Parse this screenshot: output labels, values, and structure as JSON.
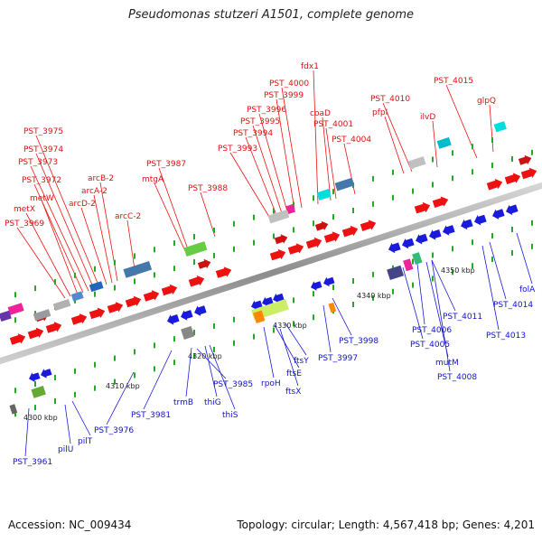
{
  "title": "Pseudomonas stutzeri A1501, complete genome",
  "footer": {
    "accession": "Accession: NC_009434",
    "summary": "Topology: circular; Length: 4,567,418 bp; Genes: 4,201"
  },
  "colors": {
    "forward": "#ee1111",
    "reverse": "#1a1adc",
    "backbone": "#9a9a9a",
    "tick": "#22aa22"
  },
  "kbp_labels": [
    "4300 kbp",
    "4310 kbp",
    "4320 kbp",
    "4330 kbp",
    "4340 kbp",
    "4350 kbp"
  ],
  "forward_labels": [
    "PST_3969",
    "metX",
    "metW",
    "PST_3972",
    "PST_3973",
    "PST_3974",
    "PST_3975",
    "arcD-2",
    "arcA-2",
    "arcB-2",
    "arcC-2",
    "mtgA",
    "PST_3987",
    "PST_3988",
    "PST_3993",
    "PST_3994",
    "PST_3995",
    "PST_3996",
    "PST_3999",
    "PST_4000",
    "fdx1",
    "coaD",
    "PST_4001",
    "PST_4004",
    "pfpI",
    "PST_4010",
    "ilvD",
    "PST_4015",
    "glpQ"
  ],
  "reverse_labels": [
    "PST_3961",
    "pilU",
    "pilT",
    "PST_3976",
    "PST_3981",
    "trmB",
    "thiG",
    "thiS",
    "PST_3985",
    "rpoH",
    "ftsX",
    "ftsE",
    "ftsY",
    "PST_3997",
    "PST_3998",
    "PST_4005",
    "PST_4006",
    "mutM",
    "PST_4008",
    "PST_4011",
    "PST_4013",
    "PST_4014",
    "folA"
  ]
}
